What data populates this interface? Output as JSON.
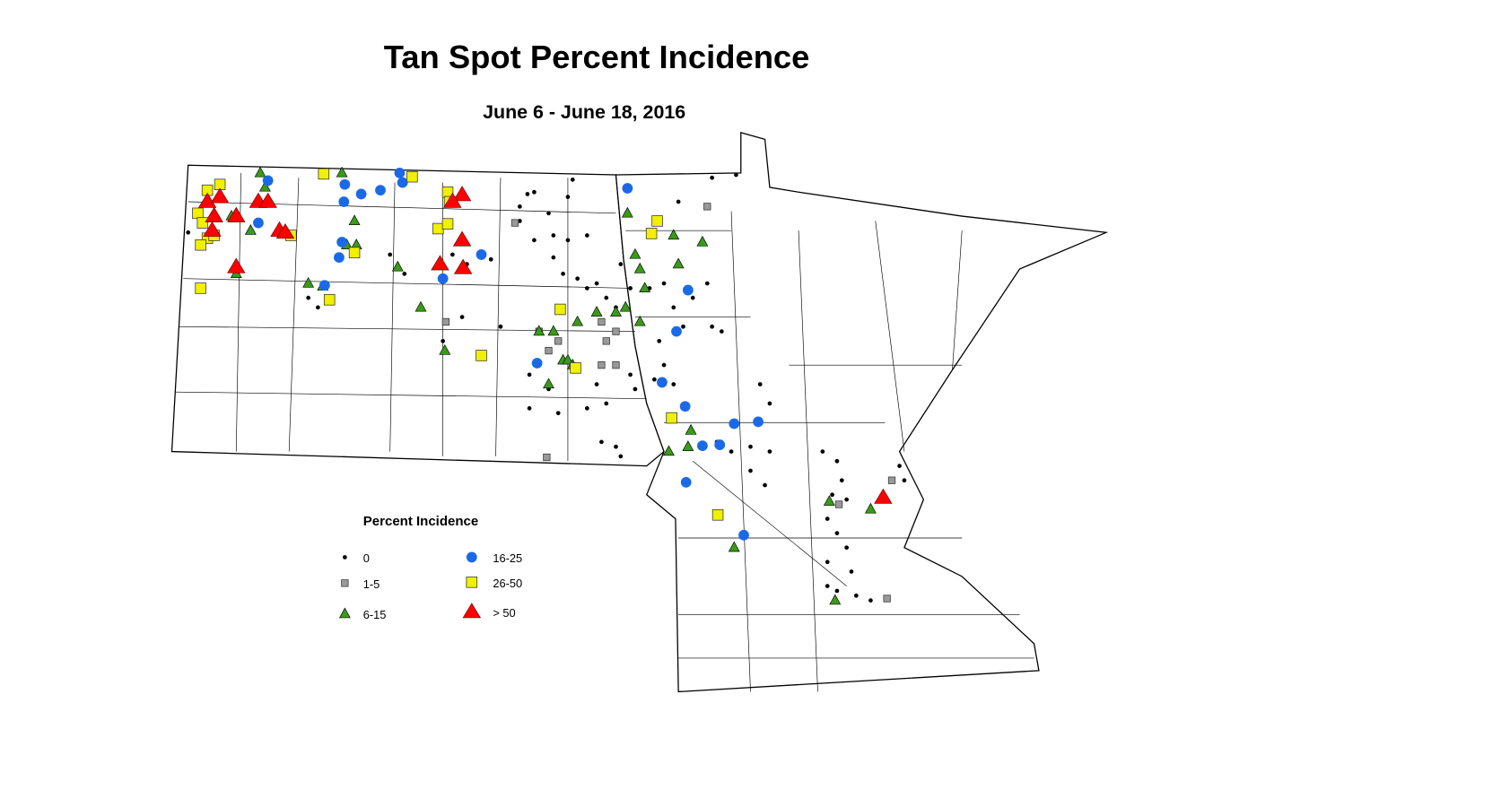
{
  "header": {
    "title": "Tan Spot Percent Incidence",
    "subtitle": "June 6 - June 18, 2016"
  },
  "legend": {
    "title": "Percent Incidence",
    "items": [
      {
        "label": "0"
      },
      {
        "label": "1-5"
      },
      {
        "label": "6-15"
      },
      {
        "label": "16-25"
      },
      {
        "label": "26-50"
      },
      {
        "label": "> 50"
      }
    ]
  }
}
